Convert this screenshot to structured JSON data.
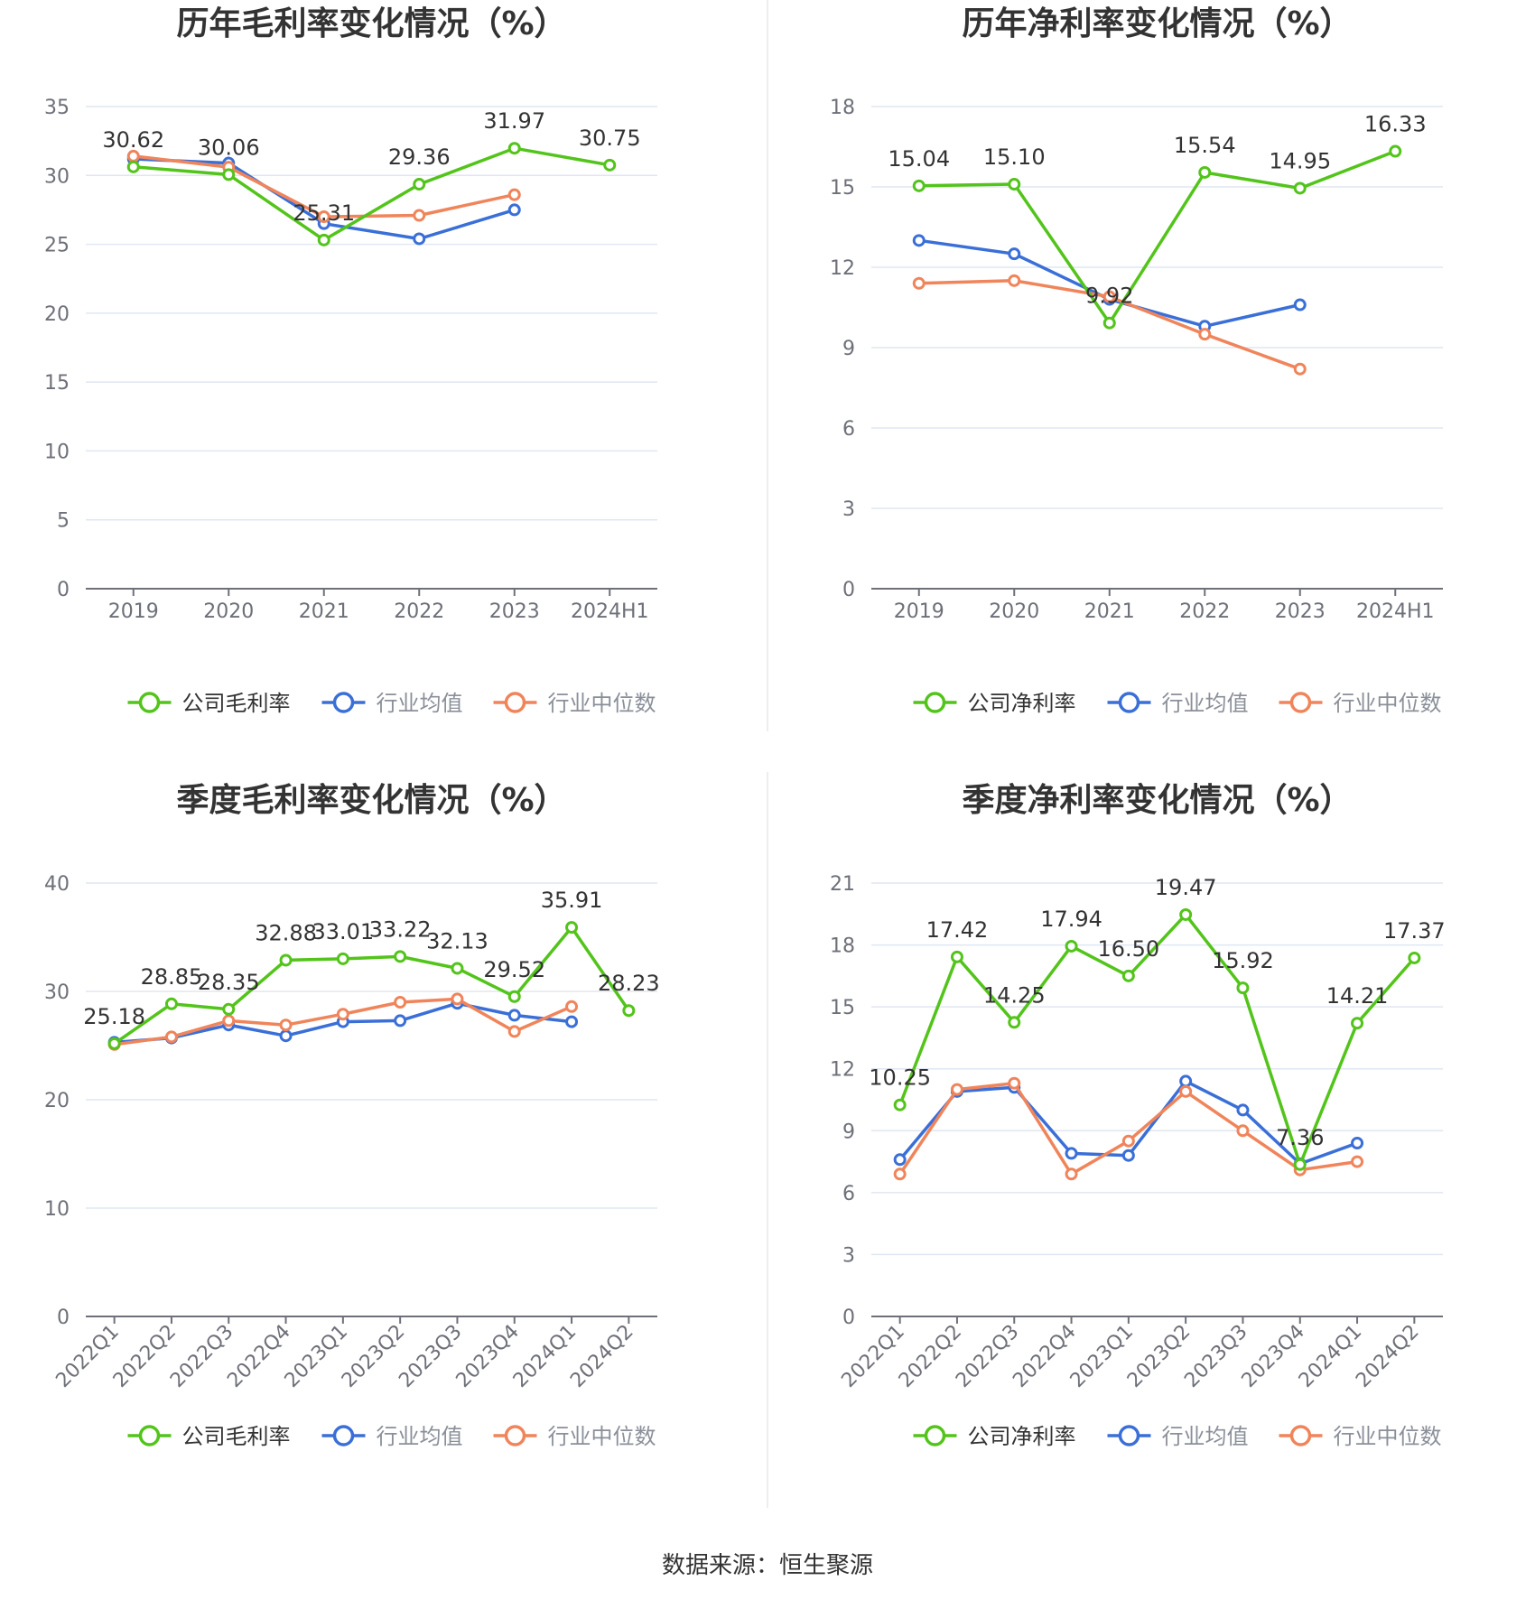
{
  "colors": {
    "company": "#52c41a",
    "industry_avg": "#3a6fd8",
    "industry_median": "#f0845a",
    "grid": "#e0e6f1",
    "axis": "#6e7079"
  },
  "source_text": "数据来源：恒生聚源",
  "chart_data": [
    {
      "type": "line",
      "title": "历年毛利率变化情况（%）",
      "categories": [
        "2019",
        "2020",
        "2021",
        "2022",
        "2023",
        "2024H1"
      ],
      "ylim": [
        0,
        35
      ],
      "yticks": [
        0,
        5,
        10,
        15,
        20,
        25,
        30,
        35
      ],
      "rotate_x": false,
      "legend_position": "bottom",
      "series": [
        {
          "name": "公司毛利率",
          "color_key": "company",
          "values": [
            30.62,
            30.06,
            25.31,
            29.36,
            31.97,
            30.75
          ],
          "labels": [
            "30.62",
            "30.06",
            "25.31",
            "29.36",
            "31.97",
            "30.75"
          ]
        },
        {
          "name": "行业均值",
          "color_key": "industry_avg",
          "values": [
            31.2,
            30.9,
            26.5,
            25.4,
            27.5,
            null
          ]
        },
        {
          "name": "行业中位数",
          "color_key": "industry_median",
          "values": [
            31.4,
            30.6,
            27.0,
            27.1,
            28.6,
            null
          ]
        }
      ]
    },
    {
      "type": "line",
      "title": "历年净利率变化情况（%）",
      "categories": [
        "2019",
        "2020",
        "2021",
        "2022",
        "2023",
        "2024H1"
      ],
      "ylim": [
        0,
        18
      ],
      "yticks": [
        0,
        3,
        6,
        9,
        12,
        15,
        18
      ],
      "rotate_x": false,
      "legend_position": "bottom",
      "series": [
        {
          "name": "公司净利率",
          "color_key": "company",
          "values": [
            15.04,
            15.1,
            9.92,
            15.54,
            14.95,
            16.33
          ],
          "labels": [
            "15.04",
            "15.10",
            "9.92",
            "15.54",
            "14.95",
            "16.33"
          ]
        },
        {
          "name": "行业均值",
          "color_key": "industry_avg",
          "values": [
            13.0,
            12.5,
            10.8,
            9.8,
            10.6,
            null
          ]
        },
        {
          "name": "行业中位数",
          "color_key": "industry_median",
          "values": [
            11.4,
            11.5,
            10.9,
            9.5,
            8.2,
            null
          ]
        }
      ]
    },
    {
      "type": "line",
      "title": "季度毛利率变化情况（%）",
      "categories": [
        "2022Q1",
        "2022Q2",
        "2022Q3",
        "2022Q4",
        "2023Q1",
        "2023Q2",
        "2023Q3",
        "2023Q4",
        "2024Q1",
        "2024Q2"
      ],
      "ylim": [
        0,
        40
      ],
      "yticks": [
        0,
        10,
        20,
        30,
        40
      ],
      "rotate_x": true,
      "legend_position": "bottom",
      "series": [
        {
          "name": "公司毛利率",
          "color_key": "company",
          "values": [
            25.18,
            28.85,
            28.35,
            32.88,
            33.01,
            33.22,
            32.13,
            29.52,
            35.91,
            28.23
          ],
          "labels": [
            "25.18",
            "28.85",
            "28.35",
            "32.88",
            "33.01",
            "33.22",
            "32.13",
            "29.52",
            "35.91",
            "28.23"
          ]
        },
        {
          "name": "行业均值",
          "color_key": "industry_avg",
          "values": [
            25.3,
            25.7,
            26.9,
            25.9,
            27.2,
            27.3,
            28.9,
            27.8,
            27.2,
            null
          ]
        },
        {
          "name": "行业中位数",
          "color_key": "industry_median",
          "values": [
            25.1,
            25.8,
            27.3,
            26.9,
            27.9,
            29.0,
            29.3,
            26.3,
            28.6,
            null
          ]
        }
      ]
    },
    {
      "type": "line",
      "title": "季度净利率变化情况（%）",
      "categories": [
        "2022Q1",
        "2022Q2",
        "2022Q3",
        "2022Q4",
        "2023Q1",
        "2023Q2",
        "2023Q3",
        "2023Q4",
        "2024Q1",
        "2024Q2"
      ],
      "ylim": [
        0,
        21
      ],
      "yticks": [
        0,
        3,
        6,
        9,
        12,
        15,
        18,
        21
      ],
      "rotate_x": true,
      "legend_position": "bottom",
      "series": [
        {
          "name": "公司净利率",
          "color_key": "company",
          "values": [
            10.25,
            17.42,
            14.25,
            17.94,
            16.5,
            19.47,
            15.92,
            7.36,
            14.21,
            17.37
          ],
          "labels": [
            "10.25",
            "17.42",
            "14.25",
            "17.94",
            "16.50",
            "19.47",
            "15.92",
            "7.36",
            "14.21",
            "17.37"
          ]
        },
        {
          "name": "行业均值",
          "color_key": "industry_avg",
          "values": [
            7.6,
            10.9,
            11.1,
            7.9,
            7.8,
            11.4,
            10.0,
            7.4,
            8.4,
            null
          ]
        },
        {
          "name": "行业中位数",
          "color_key": "industry_median",
          "values": [
            6.9,
            11.0,
            11.3,
            6.9,
            8.5,
            10.9,
            9.0,
            7.1,
            7.5,
            null
          ]
        }
      ]
    }
  ]
}
